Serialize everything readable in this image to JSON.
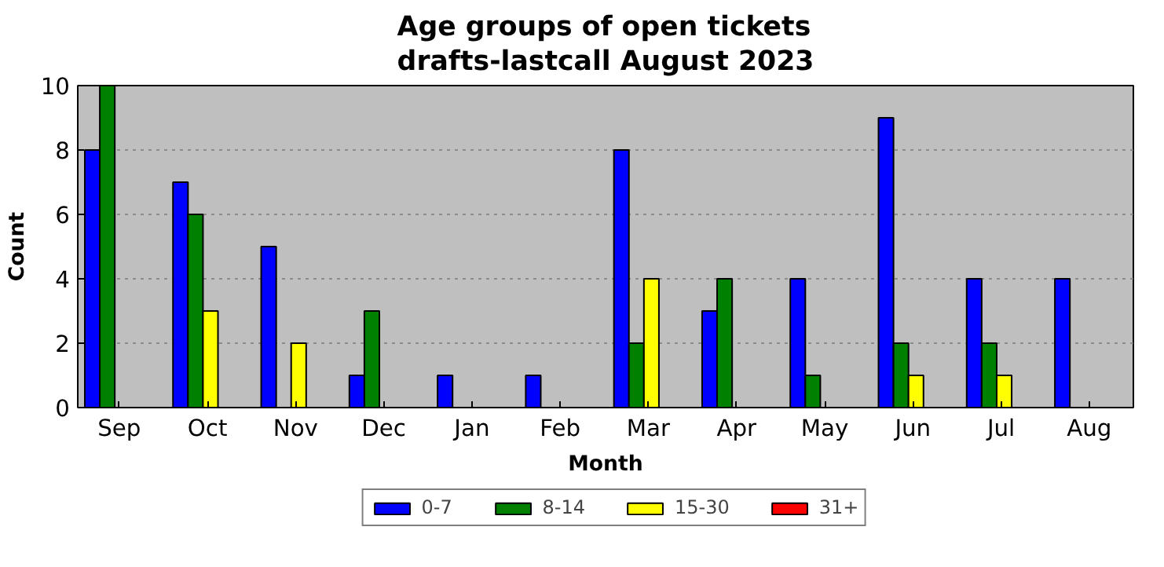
{
  "chart_data": {
    "type": "bar",
    "title": "Age groups of open tickets\ndrafts-lastcall August 2023",
    "xlabel": "Month",
    "ylabel": "Count",
    "categories": [
      "Sep",
      "Oct",
      "Nov",
      "Dec",
      "Jan",
      "Feb",
      "Mar",
      "Apr",
      "May",
      "Jun",
      "Jul",
      "Aug"
    ],
    "series": [
      {
        "name": "0-7",
        "color": "#0000ff",
        "values": [
          8,
          7,
          5,
          1,
          1,
          1,
          8,
          3,
          4,
          9,
          4,
          4
        ]
      },
      {
        "name": "8-14",
        "color": "#008000",
        "values": [
          10,
          6,
          0,
          3,
          0,
          0,
          2,
          4,
          1,
          2,
          2,
          0
        ]
      },
      {
        "name": "15-30",
        "color": "#ffff00",
        "values": [
          0,
          3,
          2,
          0,
          0,
          0,
          4,
          0,
          0,
          1,
          1,
          0
        ]
      },
      {
        "name": "31+",
        "color": "#ff0000",
        "values": [
          0,
          0,
          0,
          0,
          0,
          0,
          0,
          0,
          0,
          0,
          0,
          0
        ]
      }
    ],
    "ylim": [
      0,
      10
    ],
    "yticks": [
      0,
      2,
      4,
      6,
      8,
      10
    ],
    "grid": "y",
    "legend": "bottom"
  }
}
